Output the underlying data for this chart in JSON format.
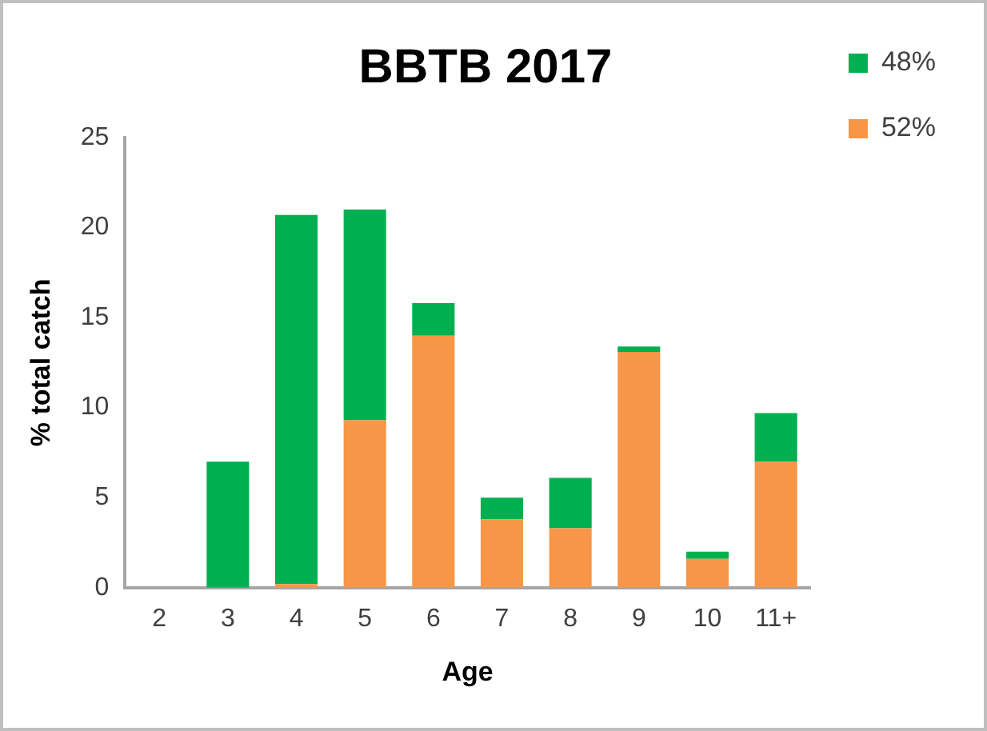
{
  "chart_data": {
    "type": "bar",
    "title": "BBTB 2017",
    "xlabel": "Age",
    "ylabel": "% total catch",
    "categories": [
      "2",
      "3",
      "4",
      "5",
      "6",
      "7",
      "8",
      "9",
      "10",
      "11+"
    ],
    "series": [
      {
        "name": "52%",
        "color": "#f79646",
        "values": [
          0,
          0,
          0.2,
          9.3,
          14.0,
          3.8,
          3.3,
          13.1,
          1.6,
          7.0
        ]
      },
      {
        "name": "48%",
        "color": "#00b050",
        "values": [
          0,
          7.0,
          20.5,
          11.7,
          1.8,
          1.2,
          2.8,
          0.3,
          0.4,
          2.7
        ]
      }
    ],
    "stacked": true,
    "ylim": [
      0,
      25
    ],
    "yticks": [
      0,
      5,
      10,
      15,
      20,
      25
    ],
    "grid": false,
    "legend": "top right"
  }
}
